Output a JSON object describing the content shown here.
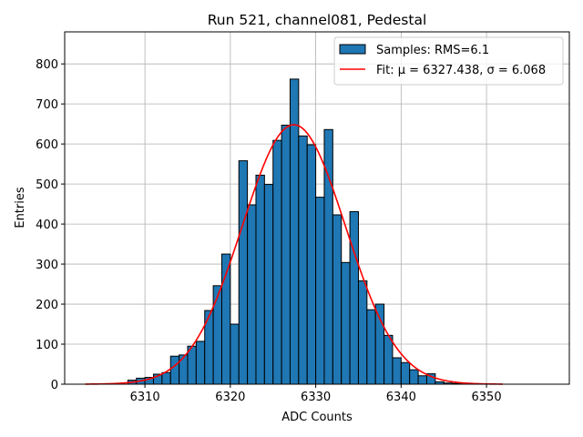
{
  "chart_data": {
    "type": "bar",
    "title": "Run 521, channel081, Pedestal",
    "xlabel": "ADC Counts",
    "ylabel": "Entries",
    "xlim": [
      6300.6,
      6359.7
    ],
    "ylim": [
      0,
      880
    ],
    "grid": true,
    "legend_placement": "top-right",
    "xticks": [
      6310,
      6320,
      6330,
      6340,
      6350
    ],
    "yticks": [
      0,
      100,
      200,
      300,
      400,
      500,
      600,
      700,
      800
    ],
    "bin_width": 1,
    "bin_edges_left": [
      6308,
      6309,
      6310,
      6311,
      6312,
      6313,
      6314,
      6315,
      6316,
      6317,
      6318,
      6319,
      6320,
      6321,
      6322,
      6323,
      6324,
      6325,
      6326,
      6327,
      6328,
      6329,
      6330,
      6331,
      6332,
      6333,
      6334,
      6335,
      6336,
      6337,
      6338,
      6339,
      6340,
      6341,
      6342,
      6343,
      6344,
      6345,
      6346,
      6347,
      6348,
      6349
    ],
    "values": [
      10,
      15,
      17,
      25,
      29,
      70,
      73,
      95,
      107,
      184,
      246,
      325,
      150,
      558,
      448,
      522,
      499,
      609,
      647,
      762,
      620,
      598,
      467,
      636,
      423,
      304,
      431,
      258,
      186,
      200,
      122,
      66,
      54,
      36,
      21,
      26,
      6,
      3,
      2,
      1,
      1,
      1
    ],
    "series": [
      {
        "name": "Samples: RMS=6.1",
        "kind": "histogram",
        "color": "#1f77b4"
      },
      {
        "name": "Fit: μ = 6327.438, σ = 6.068",
        "kind": "gaussian",
        "color": "#ff0000",
        "mu": 6327.438,
        "sigma": 6.068,
        "amplitude": 648,
        "x_range": [
          6303,
          6352
        ]
      }
    ]
  }
}
